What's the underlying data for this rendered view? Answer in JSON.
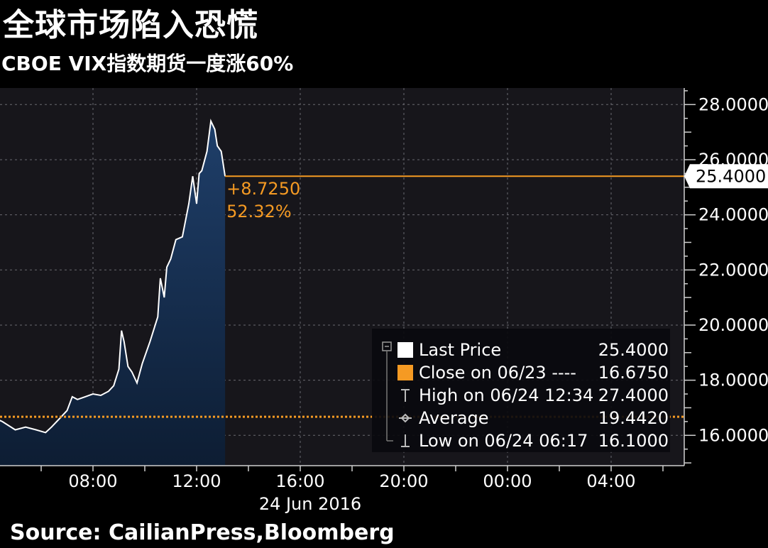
{
  "title": "全球市场陷入恐慌",
  "subtitle": "CBOE VIX指数期货一度涨60%",
  "source": "Source: CailianPress,Bloomberg",
  "chart_data": {
    "type": "area",
    "title": "全球市场陷入恐慌",
    "subtitle": "CBOE VIX指数期货一度涨60%",
    "x_tick_labels": [
      "08:00",
      "12:00",
      "16:00",
      "20:00",
      "00:00",
      "04:00"
    ],
    "x_date_label": "24 Jun 2016",
    "y_tick_labels": [
      "16.0000",
      "18.0000",
      "20.0000",
      "22.0000",
      "24.0000",
      "26.0000",
      "28.0000"
    ],
    "y_ticks": [
      16,
      18,
      20,
      22,
      24,
      26,
      28
    ],
    "ylim": [
      14.9,
      28.6
    ],
    "x_range_hours": [
      4.05,
      6.3
    ],
    "grid": true,
    "series": [
      {
        "name": "Last Price",
        "color": "#ffffff",
        "fill_top": "#1f3f6a",
        "fill_bottom": "#0d1d33",
        "x": [
          4.05,
          4.5,
          5.0,
          5.4,
          5.8,
          6.17,
          6.4,
          6.7,
          7.0,
          7.2,
          7.4,
          7.7,
          8.0,
          8.3,
          8.6,
          8.8,
          9.0,
          9.1,
          9.2,
          9.35,
          9.5,
          9.7,
          9.9,
          10.2,
          10.5,
          10.6,
          10.75,
          10.85,
          11.0,
          11.2,
          11.45,
          11.7,
          11.85,
          12.0,
          12.1,
          12.2,
          12.4,
          12.55,
          12.7,
          12.8,
          12.95,
          13.1
        ],
        "y": [
          16.7,
          16.5,
          16.2,
          16.3,
          16.2,
          16.1,
          16.3,
          16.6,
          16.9,
          17.4,
          17.3,
          17.4,
          17.5,
          17.45,
          17.6,
          17.8,
          18.4,
          19.8,
          19.4,
          18.5,
          18.3,
          17.9,
          18.6,
          19.4,
          20.3,
          21.7,
          21.0,
          22.1,
          22.4,
          23.1,
          23.2,
          24.4,
          25.4,
          24.4,
          25.5,
          25.6,
          26.3,
          27.4,
          27.1,
          26.5,
          26.3,
          25.4
        ]
      }
    ],
    "reference_line": {
      "name": "Close on 06/23",
      "value": 16.675,
      "color": "#f59a23"
    },
    "last_line": {
      "value": 25.4,
      "label": "25.4000",
      "color": "#f59a23"
    },
    "annotations": {
      "change": "+8.7250",
      "change_pct": "52.32%",
      "color": "#f59a23"
    },
    "legend": {
      "placement": "bottom-right",
      "items": [
        {
          "label": "Last Price",
          "value": "25.4000",
          "symbol": "white-square"
        },
        {
          "label": "Close on 06/23 ----",
          "value": "16.6750",
          "symbol": "orange-square"
        },
        {
          "label": "High on 06/24 12:34",
          "value": "27.4000",
          "symbol": "high-marker"
        },
        {
          "label": "Average",
          "value": "19.4420",
          "symbol": "average-marker"
        },
        {
          "label": "Low on 06/24 06:17",
          "value": "16.1000",
          "symbol": "low-marker"
        }
      ]
    }
  }
}
